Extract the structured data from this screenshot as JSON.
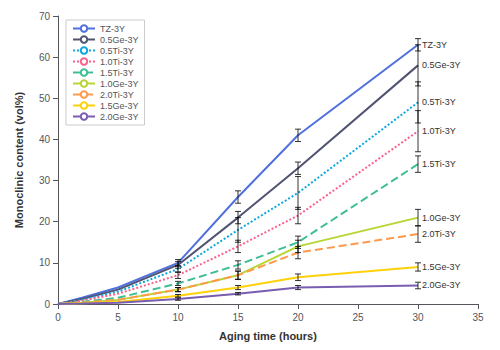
{
  "chart_data": {
    "type": "line",
    "xlabel": "Aging time (hours)",
    "ylabel": "Monoclinic content (vol%)",
    "xlim": [
      0,
      35
    ],
    "ylim": [
      0,
      70
    ],
    "xticks": [
      0,
      5,
      10,
      15,
      20,
      25,
      30,
      35
    ],
    "yticks": [
      0,
      10,
      20,
      30,
      40,
      50,
      60,
      70
    ],
    "grid": false,
    "legend": "upper left",
    "series": [
      {
        "name": "TZ-3Y",
        "x": [
          0,
          2,
          5,
          10,
          15,
          20,
          30
        ],
        "values": [
          0,
          1.5,
          4.0,
          10.0,
          26.0,
          41.0,
          63.0
        ],
        "yerr": [
          0,
          0,
          0,
          0.8,
          1.5,
          1.5,
          1.5
        ],
        "line_style": "solid"
      },
      {
        "name": "0.5Ge-3Y",
        "x": [
          0,
          2,
          5,
          10,
          15,
          20,
          30
        ],
        "values": [
          0,
          1.2,
          3.5,
          9.5,
          21.0,
          33.0,
          58.0
        ],
        "yerr": [
          0,
          0,
          0,
          0.8,
          1.5,
          1.5,
          5.0
        ],
        "line_style": "solid"
      },
      {
        "name": "0.5Ti-3Y",
        "x": [
          0,
          2,
          5,
          10,
          15,
          20,
          30
        ],
        "values": [
          0,
          1.0,
          3.0,
          8.5,
          18.0,
          27.0,
          49.0
        ],
        "yerr": [
          0,
          0,
          0,
          0.8,
          3.0,
          4.0,
          5.0
        ],
        "line_style": "dotted"
      },
      {
        "name": "1.0Ti-3Y",
        "x": [
          0,
          2,
          5,
          10,
          15,
          20,
          30
        ],
        "values": [
          0,
          0.8,
          2.5,
          7.0,
          14.0,
          21.5,
          42.0
        ],
        "yerr": [
          0,
          0,
          0,
          0.8,
          1.5,
          2.0,
          5.0
        ],
        "line_style": "dotted"
      },
      {
        "name": "1.5Ti-3Y",
        "x": [
          0,
          2,
          5,
          10,
          15,
          20,
          30
        ],
        "values": [
          0,
          0.5,
          1.5,
          5.0,
          9.5,
          15.0,
          34.0
        ],
        "yerr": [
          0,
          0,
          0,
          0.5,
          1.0,
          1.5,
          2.0
        ],
        "line_style": "dashed"
      },
      {
        "name": "1.0Ge-3Y",
        "x": [
          0,
          2,
          5,
          10,
          15,
          20,
          30
        ],
        "values": [
          0,
          0.3,
          1.0,
          3.5,
          7.0,
          14.0,
          21.0
        ],
        "yerr": [
          0,
          0,
          0,
          0.5,
          1.0,
          1.5,
          2.0
        ],
        "line_style": "solid"
      },
      {
        "name": "2.0Ti-3Y",
        "x": [
          0,
          2,
          5,
          10,
          15,
          20,
          30
        ],
        "values": [
          0,
          0.3,
          1.0,
          3.5,
          7.0,
          12.5,
          17.0
        ],
        "yerr": [
          0,
          0,
          0,
          0.5,
          1.0,
          1.5,
          2.0
        ],
        "line_style": "dashed"
      },
      {
        "name": "1.5Ge-3Y",
        "x": [
          0,
          2,
          5,
          10,
          15,
          20,
          30
        ],
        "values": [
          0,
          0.2,
          0.5,
          2.0,
          4.0,
          6.5,
          9.0
        ],
        "yerr": [
          0,
          0,
          0,
          0.3,
          0.5,
          0.8,
          1.0
        ],
        "line_style": "solid"
      },
      {
        "name": "2.0Ge-3Y",
        "x": [
          0,
          2,
          5,
          10,
          15,
          20,
          30
        ],
        "values": [
          0,
          0.1,
          0.3,
          1.2,
          2.5,
          4.0,
          4.5
        ],
        "yerr": [
          0,
          0,
          0,
          0.3,
          0.3,
          0.5,
          0.8
        ],
        "line_style": "solid"
      }
    ]
  }
}
